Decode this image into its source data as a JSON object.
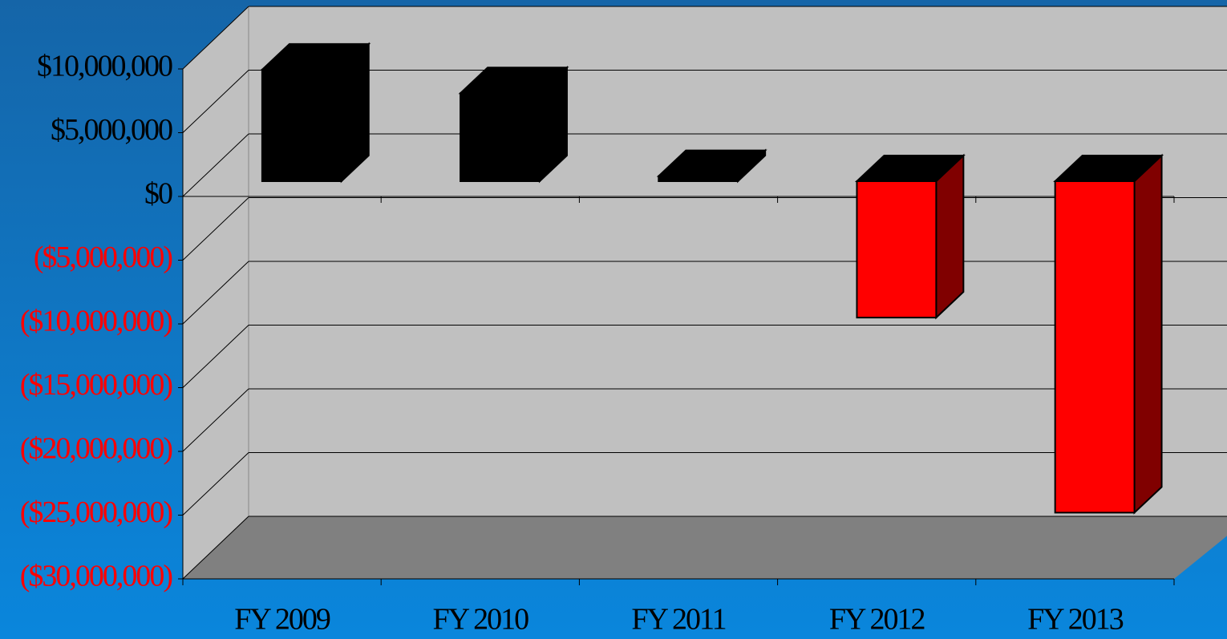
{
  "chart_data": {
    "type": "bar3d",
    "categories": [
      "FY 2009",
      "FY 2010",
      "FY 2011",
      "FY 2012",
      "FY 2013"
    ],
    "values": [
      8750000,
      6900000,
      400000,
      -10700000,
      -26000000
    ],
    "colors": [
      "#000000",
      "#000000",
      "#000000",
      "#ff0000",
      "#ff0000"
    ],
    "negative_label_color": "#ff0000",
    "ylim": [
      -30000000,
      10000000
    ],
    "yticks": [
      {
        "value": 10000000,
        "label": "$10,000,000"
      },
      {
        "value": 5000000,
        "label": "$5,000,000"
      },
      {
        "value": 0,
        "label": "$0"
      },
      {
        "value": -5000000,
        "label": "($5,000,000)"
      },
      {
        "value": -10000000,
        "label": "($10,000,000)"
      },
      {
        "value": -15000000,
        "label": "($15,000,000)"
      },
      {
        "value": -20000000,
        "label": "($20,000,000)"
      },
      {
        "value": -25000000,
        "label": "($25,000,000)"
      },
      {
        "value": -30000000,
        "label": "($30,000,000)"
      }
    ],
    "grid": true
  }
}
